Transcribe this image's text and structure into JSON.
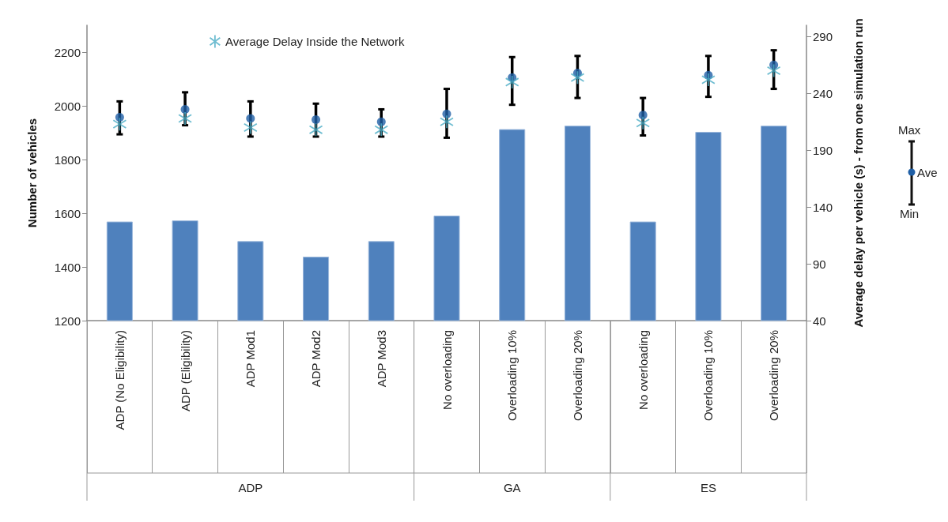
{
  "chart_data": {
    "type": "bar",
    "ylabel": "Number of vehicles",
    "y2label": "Average delay per vehicle (s) - from one simulation run",
    "categories": [
      "ADP (No Eligibility)",
      "ADP (Eligibility)",
      "ADP Mod1",
      "ADP Mod2",
      "ADP Mod3",
      "No overloading",
      "Overloading 10%",
      "Overloading 20%",
      "No overloading",
      "Overloading 10%",
      "Overloading 20%"
    ],
    "series": [
      {
        "color": "#4f81bd",
        "values": [
          1569,
          1573,
          1496,
          1438,
          1496,
          1591,
          1913,
          1926,
          1569,
          1903,
          1926
        ]
      },
      {
        "type": "scatter",
        "axis": "y2",
        "color": "#1f5fa6",
        "marker": "circle",
        "values": [
          219,
          226,
          218,
          217,
          215,
          222,
          254,
          258,
          221,
          256,
          265
        ],
        "errors": [
          [
            204,
            233
          ],
          [
            212,
            241
          ],
          [
            202,
            233
          ],
          [
            202,
            231
          ],
          [
            202,
            226
          ],
          [
            201,
            244
          ],
          [
            230,
            272
          ],
          [
            236,
            273
          ],
          [
            203,
            236
          ],
          [
            237,
            273
          ],
          [
            244,
            278
          ]
        ]
      },
      {
        "type": "scatter",
        "axis": "y2",
        "name": "Average Delay Inside the Network",
        "color": "#4bacc6",
        "marker": "cross",
        "values": [
          213,
          218,
          210,
          208,
          208,
          215,
          250,
          254,
          214,
          252,
          260
        ]
      }
    ],
    "ylim": [
      1200,
      2300
    ],
    "yticks": [
      1200,
      1400,
      1600,
      1800,
      2000,
      2200
    ],
    "y2lim": [
      40,
      300
    ],
    "y2ticks": [
      40,
      90,
      140,
      190,
      240,
      290
    ],
    "annotations": [
      "ADP",
      "GA",
      "ES",
      "Max",
      "Ave",
      "Min"
    ],
    "grid": false,
    "legend": "top"
  }
}
